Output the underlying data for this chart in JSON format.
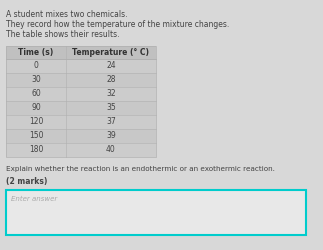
{
  "title_lines": [
    "A student mixes two chemicals.",
    "They record how the temperature of the mixture changes.",
    "The table shows their results."
  ],
  "table_headers": [
    "Time (s)",
    "Temperature (° C)"
  ],
  "table_data": [
    [
      "0",
      "24"
    ],
    [
      "30",
      "28"
    ],
    [
      "60",
      "32"
    ],
    [
      "90",
      "35"
    ],
    [
      "120",
      "37"
    ],
    [
      "150",
      "39"
    ],
    [
      "180",
      "40"
    ]
  ],
  "question_text": "Explain whether the reaction is an endothermic or an exothermic reaction.",
  "marks_text": "(2 marks)",
  "answer_placeholder": "Enter answer",
  "bg_color": "#d8d8d8",
  "table_line_color": "#b0b0b0",
  "answer_box_border": "#00cccc",
  "answer_box_bg": "#e8e8e8",
  "text_color": "#444444",
  "header_text_color": "#333333",
  "placeholder_color": "#aaaaaa",
  "title_fontsize": 5.5,
  "table_fontsize": 5.5,
  "question_fontsize": 5.2,
  "marks_fontsize": 5.5,
  "placeholder_fontsize": 5.0
}
